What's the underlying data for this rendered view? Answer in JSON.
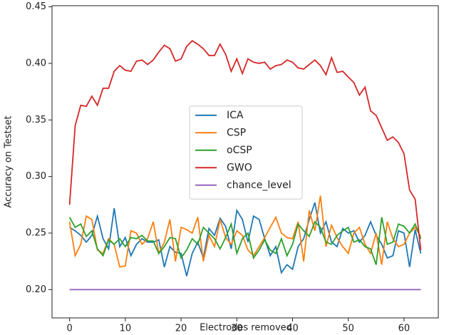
{
  "chart_data": {
    "type": "line",
    "xlabel": "Electrodes removed",
    "ylabel": "Accuracy on Testset",
    "x": [
      0,
      1,
      2,
      3,
      4,
      5,
      6,
      7,
      8,
      9,
      10,
      11,
      12,
      13,
      14,
      15,
      16,
      17,
      18,
      19,
      20,
      21,
      22,
      23,
      24,
      25,
      26,
      27,
      28,
      29,
      30,
      31,
      32,
      33,
      34,
      35,
      36,
      37,
      38,
      39,
      40,
      41,
      42,
      43,
      44,
      45,
      46,
      47,
      48,
      49,
      50,
      51,
      52,
      53,
      54,
      55,
      56,
      57,
      58,
      59,
      60,
      61,
      62,
      63
    ],
    "series": [
      {
        "name": "ICA",
        "color": "#1f77b4",
        "values": [
          0.255,
          0.252,
          0.248,
          0.242,
          0.248,
          0.265,
          0.245,
          0.236,
          0.272,
          0.238,
          0.246,
          0.23,
          0.24,
          0.245,
          0.242,
          0.242,
          0.244,
          0.22,
          0.238,
          0.233,
          0.232,
          0.212,
          0.232,
          0.242,
          0.228,
          0.254,
          0.248,
          0.263,
          0.256,
          0.236,
          0.27,
          0.262,
          0.242,
          0.265,
          0.262,
          0.245,
          0.23,
          0.238,
          0.215,
          0.222,
          0.218,
          0.238,
          0.245,
          0.262,
          0.277,
          0.25,
          0.26,
          0.242,
          0.238,
          0.254,
          0.25,
          0.252,
          0.242,
          0.248,
          0.26,
          0.248,
          0.24,
          0.228,
          0.23,
          0.252,
          0.25,
          0.22,
          0.253,
          0.232
        ]
      },
      {
        "name": "CSP",
        "color": "#ff7f0e",
        "values": [
          0.26,
          0.23,
          0.24,
          0.265,
          0.262,
          0.235,
          0.232,
          0.245,
          0.24,
          0.22,
          0.221,
          0.252,
          0.25,
          0.24,
          0.245,
          0.26,
          0.232,
          0.242,
          0.262,
          0.225,
          0.255,
          0.253,
          0.25,
          0.264,
          0.225,
          0.248,
          0.238,
          0.262,
          0.246,
          0.24,
          0.252,
          0.248,
          0.235,
          0.23,
          0.238,
          0.246,
          0.255,
          0.264,
          0.25,
          0.246,
          0.245,
          0.26,
          0.225,
          0.27,
          0.252,
          0.283,
          0.238,
          0.257,
          0.246,
          0.238,
          0.232,
          0.25,
          0.255,
          0.24,
          0.232,
          0.25,
          0.222,
          0.26,
          0.245,
          0.238,
          0.24,
          0.25,
          0.255,
          0.247
        ]
      },
      {
        "name": "oCSP",
        "color": "#2ca02c",
        "values": [
          0.264,
          0.255,
          0.258,
          0.247,
          0.252,
          0.236,
          0.23,
          0.244,
          0.24,
          0.245,
          0.238,
          0.246,
          0.245,
          0.248,
          0.243,
          0.243,
          0.232,
          0.238,
          0.246,
          0.245,
          0.228,
          0.235,
          0.245,
          0.24,
          0.255,
          0.25,
          0.245,
          0.236,
          0.246,
          0.258,
          0.232,
          0.245,
          0.25,
          0.228,
          0.235,
          0.244,
          0.235,
          0.232,
          0.245,
          0.23,
          0.24,
          0.258,
          0.252,
          0.247,
          0.26,
          0.255,
          0.242,
          0.24,
          0.248,
          0.252,
          0.255,
          0.242,
          0.244,
          0.238,
          0.236,
          0.222,
          0.264,
          0.24,
          0.242,
          0.258,
          0.256,
          0.25,
          0.258,
          0.245
        ]
      },
      {
        "name": "GWO",
        "color": "#d62728",
        "values": [
          0.275,
          0.345,
          0.363,
          0.362,
          0.371,
          0.363,
          0.378,
          0.378,
          0.393,
          0.398,
          0.394,
          0.393,
          0.402,
          0.403,
          0.399,
          0.403,
          0.41,
          0.416,
          0.413,
          0.402,
          0.404,
          0.415,
          0.42,
          0.417,
          0.413,
          0.407,
          0.407,
          0.417,
          0.408,
          0.393,
          0.404,
          0.391,
          0.404,
          0.401,
          0.4,
          0.401,
          0.395,
          0.398,
          0.399,
          0.403,
          0.401,
          0.396,
          0.395,
          0.399,
          0.403,
          0.398,
          0.39,
          0.405,
          0.392,
          0.393,
          0.388,
          0.383,
          0.372,
          0.379,
          0.358,
          0.354,
          0.343,
          0.332,
          0.335,
          0.33,
          0.32,
          0.288,
          0.28,
          0.235
        ]
      },
      {
        "name": "chance_level",
        "color": "#9467bd",
        "values": [
          0.2,
          0.2,
          0.2,
          0.2,
          0.2,
          0.2,
          0.2,
          0.2,
          0.2,
          0.2,
          0.2,
          0.2,
          0.2,
          0.2,
          0.2,
          0.2,
          0.2,
          0.2,
          0.2,
          0.2,
          0.2,
          0.2,
          0.2,
          0.2,
          0.2,
          0.2,
          0.2,
          0.2,
          0.2,
          0.2,
          0.2,
          0.2,
          0.2,
          0.2,
          0.2,
          0.2,
          0.2,
          0.2,
          0.2,
          0.2,
          0.2,
          0.2,
          0.2,
          0.2,
          0.2,
          0.2,
          0.2,
          0.2,
          0.2,
          0.2,
          0.2,
          0.2,
          0.2,
          0.2,
          0.2,
          0.2,
          0.2,
          0.2,
          0.2,
          0.2,
          0.2,
          0.2,
          0.2,
          0.2
        ]
      }
    ],
    "xlim": [
      -3.15,
      66.15
    ],
    "xticks": [
      0,
      10,
      20,
      30,
      40,
      50,
      60
    ],
    "ylim": [
      0.175,
      0.451
    ],
    "yticks": [
      {
        "value": 0.2,
        "label": "0.20"
      },
      0.25,
      {
        "value": 0.3,
        "label": "0.30"
      },
      0.35,
      {
        "value": 0.4,
        "label": "0.40"
      },
      0.45
    ],
    "legend": "center"
  }
}
